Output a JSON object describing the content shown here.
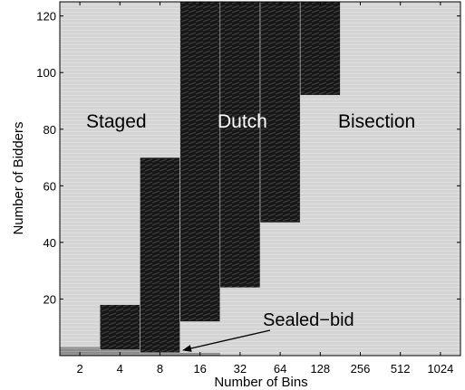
{
  "chart_data": {
    "type": "heatmap",
    "title": "",
    "xlabel": "Number of Bins",
    "ylabel": "Number of Bidders",
    "x_categories": [
      "2",
      "4",
      "8",
      "16",
      "32",
      "64",
      "128",
      "256",
      "512",
      "1024"
    ],
    "ylim": [
      0,
      125
    ],
    "yticks": [
      20,
      40,
      60,
      80,
      100,
      120
    ],
    "colors": {
      "Staged": "#d3d3d3",
      "Dutch": "#1c1c1c",
      "Bisection": "#d6d6d6",
      "Sealed-bid": "#8a8a8a"
    },
    "regions": [
      {
        "name": "Sealed-bid",
        "columns": [
          {
            "bins": "2",
            "from": 0,
            "to": 3
          },
          {
            "bins": "4",
            "from": 0,
            "to": 2
          },
          {
            "bins": "8",
            "from": 0,
            "to": 1
          },
          {
            "bins": "16",
            "from": 0,
            "to": 1
          }
        ]
      },
      {
        "name": "Dutch",
        "columns": [
          {
            "bins": "4",
            "from": 2,
            "to": 18
          },
          {
            "bins": "8",
            "from": 1,
            "to": 70
          },
          {
            "bins": "16",
            "from": 12,
            "to": 125
          },
          {
            "bins": "32",
            "from": 24,
            "to": 125
          },
          {
            "bins": "64",
            "from": 47,
            "to": 125
          },
          {
            "bins": "128",
            "from": 92,
            "to": 125
          }
        ]
      }
    ],
    "background_regions": [
      "Staged",
      "Bisection"
    ],
    "annotations": {
      "staged": "Staged",
      "dutch": "Dutch",
      "bisection": "Bisection",
      "sealed_bid": "Sealed−bid"
    }
  }
}
